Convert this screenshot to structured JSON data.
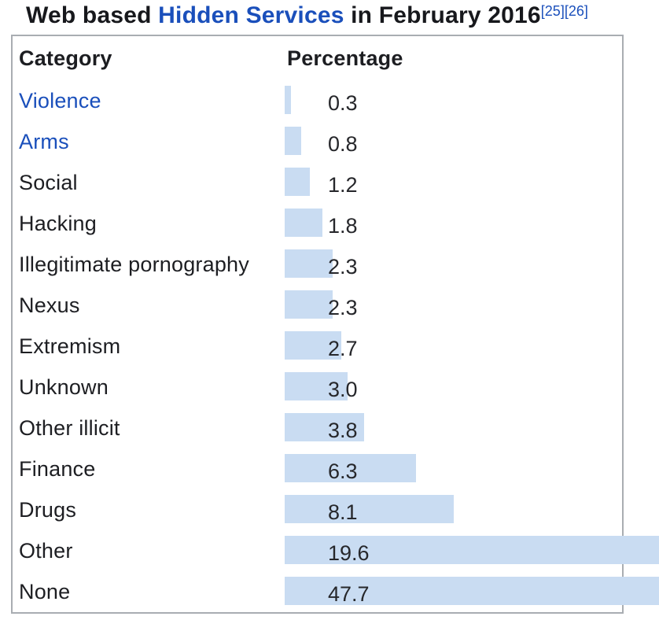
{
  "title": {
    "prefix": "Web based ",
    "link_text": "Hidden Services",
    "suffix": " in February 2016",
    "citations": [
      "[25]",
      "[26]"
    ]
  },
  "table": {
    "headers": {
      "category": "Category",
      "percentage": "Percentage"
    },
    "rows": [
      {
        "category": "Violence",
        "is_link": true,
        "value": 0.3,
        "label": "0.3"
      },
      {
        "category": "Arms",
        "is_link": true,
        "value": 0.8,
        "label": "0.8"
      },
      {
        "category": "Social",
        "is_link": false,
        "value": 1.2,
        "label": "1.2"
      },
      {
        "category": "Hacking",
        "is_link": false,
        "value": 1.8,
        "label": "1.8"
      },
      {
        "category": "Illegitimate pornography",
        "is_link": false,
        "value": 2.3,
        "label": "2.3"
      },
      {
        "category": "Nexus",
        "is_link": false,
        "value": 2.3,
        "label": "2.3"
      },
      {
        "category": "Extremism",
        "is_link": false,
        "value": 2.7,
        "label": "2.7"
      },
      {
        "category": "Unknown",
        "is_link": false,
        "value": 3.0,
        "label": "3.0"
      },
      {
        "category": "Other illicit",
        "is_link": false,
        "value": 3.8,
        "label": "3.8"
      },
      {
        "category": "Finance",
        "is_link": false,
        "value": 6.3,
        "label": "6.3"
      },
      {
        "category": "Drugs",
        "is_link": false,
        "value": 8.1,
        "label": "8.1"
      },
      {
        "category": "Other",
        "is_link": false,
        "value": 19.6,
        "label": "19.6"
      },
      {
        "category": "None",
        "is_link": false,
        "value": 47.7,
        "label": "47.7"
      }
    ]
  },
  "colors": {
    "bar": "#c9dcf2",
    "link": "#1a4fbb",
    "text": "#202122",
    "border": "#a9adb2"
  },
  "chart_data": {
    "type": "bar",
    "orientation": "horizontal",
    "title": "Web based Hidden Services in February 2016",
    "categories": [
      "Violence",
      "Arms",
      "Social",
      "Hacking",
      "Illegitimate pornography",
      "Nexus",
      "Extremism",
      "Unknown",
      "Other illicit",
      "Finance",
      "Drugs",
      "Other",
      "None"
    ],
    "values": [
      0.3,
      0.8,
      1.2,
      1.8,
      2.3,
      2.3,
      2.7,
      3.0,
      3.8,
      6.3,
      8.1,
      19.6,
      47.7
    ],
    "unit": "percent",
    "xlabel": "Percentage",
    "ylabel": "Category",
    "xlim": [
      0,
      47.7
    ],
    "value_labels_shown": true,
    "grid": false,
    "legend": false
  }
}
